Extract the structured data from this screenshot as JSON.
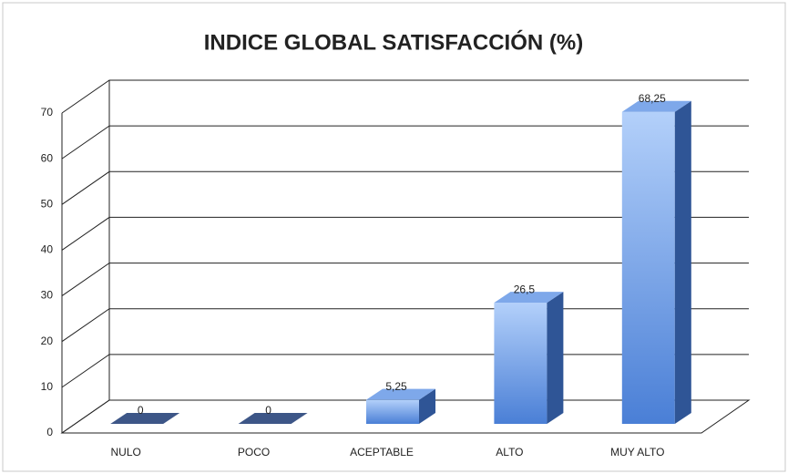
{
  "chart_data": {
    "type": "bar3d",
    "title": "INDICE GLOBAL SATISFACCIÓN (%)",
    "categories": [
      "NULO",
      "POCO",
      "ACEPTABLE",
      "ALTO",
      "MUY ALTO"
    ],
    "values": [
      0,
      0,
      5.25,
      26.5,
      68.25
    ],
    "value_labels": [
      "0",
      "0",
      "5,25",
      "26,5",
      "68,25"
    ],
    "color": "#5b8fde",
    "ylim": [
      0,
      70
    ],
    "yticks": [
      0,
      10,
      20,
      30,
      40,
      50,
      60,
      70
    ],
    "grid": true
  }
}
